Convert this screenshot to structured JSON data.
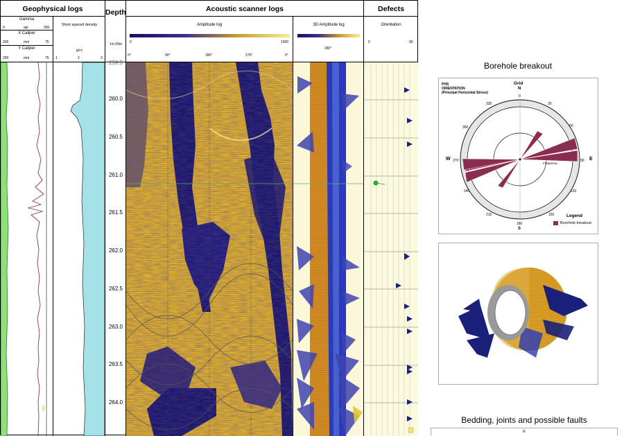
{
  "headers": {
    "geophysical": "Geophysical logs",
    "depth": "Depth",
    "acoustic": "Acoustic scanner logs",
    "defects": "Defects"
  },
  "geophysical": {
    "gamma": {
      "label": "Gamma",
      "min": "0",
      "unit": "api",
      "max": "300"
    },
    "x_caliper": {
      "label": "X Caliper",
      "min": "200",
      "unit": "mm",
      "max": "75"
    },
    "y_caliper": {
      "label": "Y Caliper",
      "min": "200",
      "unit": "mm",
      "max": "75"
    },
    "density": {
      "label": "Short spaced density",
      "unit": "g/cc",
      "ticks": [
        "1",
        "2",
        "3"
      ]
    }
  },
  "depth_scale": "1m:30m",
  "depth_labels": [
    "260.0",
    "260.5",
    "261.0",
    "261.5",
    "262.0",
    "262.5",
    "263.0",
    "263.5",
    "264.0"
  ],
  "depth_top_partial": "259.5",
  "amplitude": {
    "label": "Amplitude log",
    "scale_min": "0",
    "scale_max": "1000",
    "angles": [
      "0°",
      "90°",
      "180°",
      "270°",
      "0°"
    ]
  },
  "amplitude3d": {
    "label": "3D Amplitude log",
    "angle": "180°"
  },
  "orientation": {
    "label": "Orientation",
    "min": "0",
    "max": "90"
  },
  "breakout": {
    "title": "Borehole breakout",
    "phs_line1": "PHS",
    "phs_line2": "ORIENTATION",
    "phs_line3": "(Principal Horizontal Stress)",
    "grid": "Grid",
    "north": "N",
    "south": "S",
    "west": "W",
    "east": "E",
    "frequency": "Frequency",
    "legend_title": "Legend",
    "legend_item": "Borehole breakout",
    "ring_labels": [
      "0",
      "30",
      "60",
      "90",
      "120",
      "150",
      "180",
      "210",
      "240",
      "270",
      "300",
      "330"
    ],
    "colors": {
      "breakout": "#8b2d4f"
    }
  },
  "bedding_title": "Bedding, joints and possible faults",
  "bedding_partial": "N"
}
